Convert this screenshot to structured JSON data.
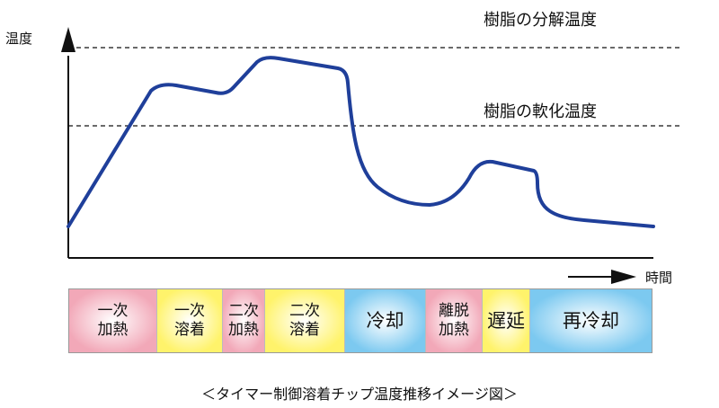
{
  "axes": {
    "y_label": "温度",
    "x_label": "時間"
  },
  "reference_lines": [
    {
      "label": "樹脂の分解温度"
    },
    {
      "label": "樹脂の軟化温度"
    }
  ],
  "curve": {
    "color": "#1f3f9a"
  },
  "phases": [
    {
      "label": "一次\n加熱",
      "color": "#f2a8b8"
    },
    {
      "label": "一次\n溶着",
      "color": "#fff36b"
    },
    {
      "label": "二次\n加熱",
      "color": "#f2a8b8"
    },
    {
      "label": "二次\n溶着",
      "color": "#fff36b"
    },
    {
      "label": "冷却",
      "color": "#7cc9f0"
    },
    {
      "label": "離脱\n加熱",
      "color": "#f2a8b8"
    },
    {
      "label": "遅延",
      "color": "#fff36b"
    },
    {
      "label": "再冷却",
      "color": "#7cc9f0"
    }
  ],
  "caption": "＜タイマー制御溶着チップ温度推移イメージ図＞"
}
